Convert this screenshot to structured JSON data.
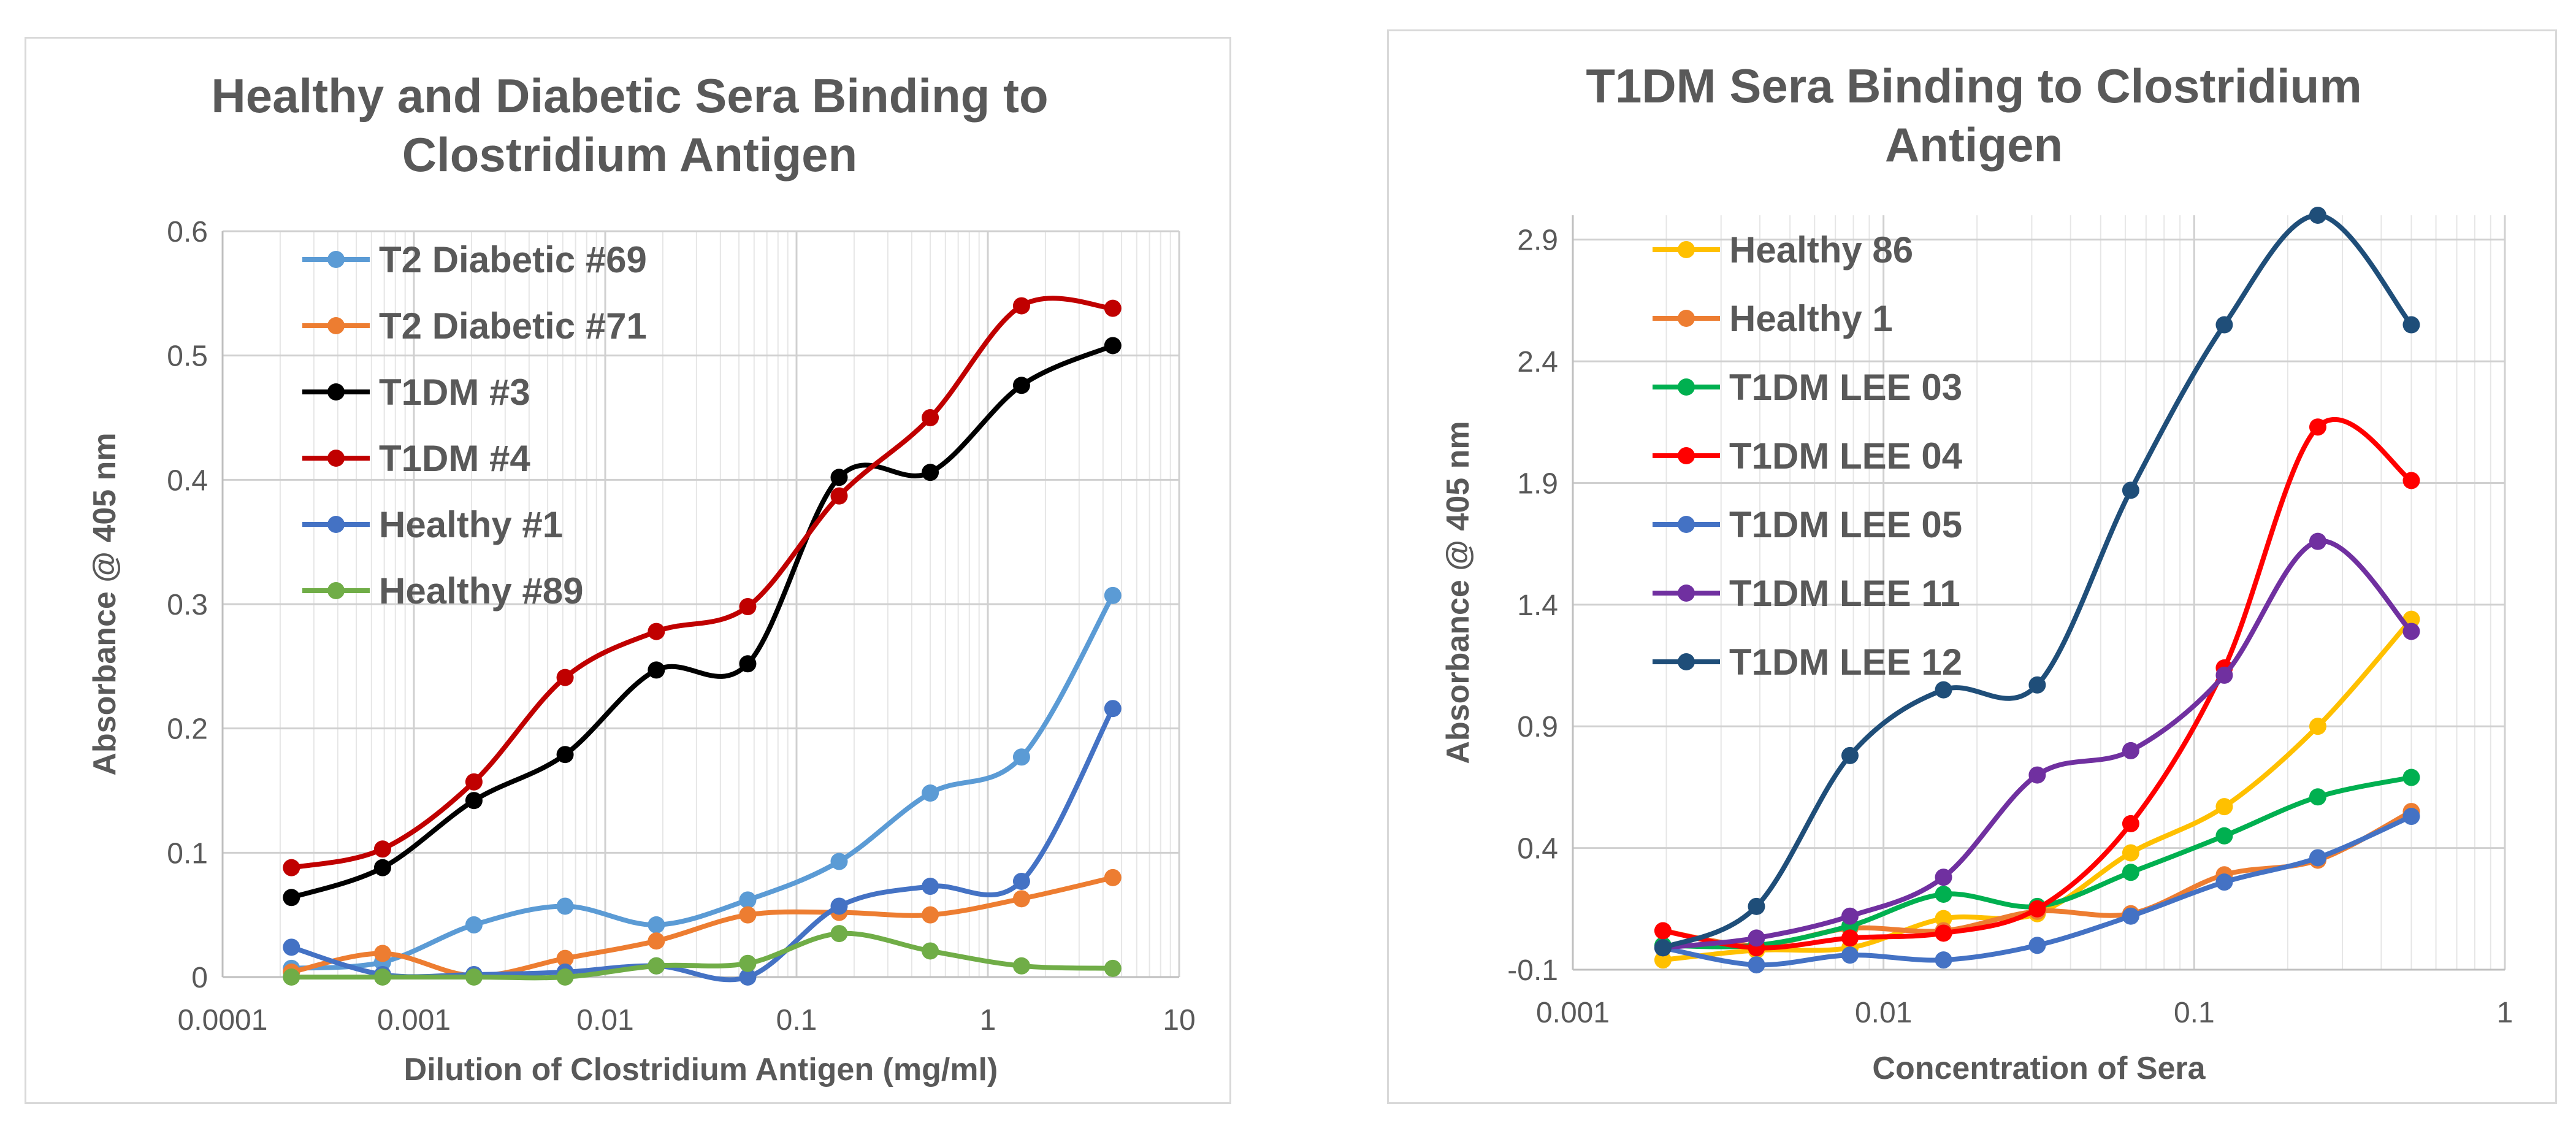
{
  "chart_data": [
    {
      "type": "line",
      "title": [
        "Healthy and Diabetic Sera Binding to",
        "Clostridium Antigen"
      ],
      "xlabel": "Dilution of Clostridium Antigen (mg/ml)",
      "ylabel": "Absorbance @ 405 nm",
      "xscale": "log",
      "xlim": [
        0.0001,
        10
      ],
      "ylim": [
        0,
        0.6
      ],
      "xticks": [
        0.0001,
        0.001,
        0.01,
        0.1,
        1,
        10
      ],
      "xtick_labels": [
        "0.0001",
        "0.001",
        "0.01",
        "0.1",
        "1",
        "10"
      ],
      "yticks": [
        0,
        0.1,
        0.2,
        0.3,
        0.4,
        0.5,
        0.6
      ],
      "ytick_labels": [
        "0",
        "0.1",
        "0.2",
        "0.3",
        "0.4",
        "0.5",
        "0.6"
      ],
      "grid": true,
      "legend": "top-left",
      "x": [
        0.000229,
        0.000686,
        0.00206,
        0.00617,
        0.0185,
        0.0556,
        0.167,
        0.5,
        1.5,
        4.5
      ],
      "series": [
        {
          "name": "T2 Diabetic #69",
          "color": "#5B9BD5",
          "values": [
            0.007,
            0.012,
            0.042,
            0.057,
            0.042,
            0.062,
            0.093,
            0.148,
            0.177,
            0.307
          ]
        },
        {
          "name": "T2 Diabetic #71",
          "color": "#ED7D31",
          "values": [
            0.004,
            0.019,
            0.001,
            0.015,
            0.029,
            0.05,
            0.052,
            0.05,
            0.063,
            0.08
          ]
        },
        {
          "name": "T1DM #3",
          "color": "#000000",
          "values": [
            0.064,
            0.088,
            0.142,
            0.179,
            0.247,
            0.252,
            0.402,
            0.406,
            0.476,
            0.508
          ]
        },
        {
          "name": "T1DM #4",
          "color": "#C00000",
          "values": [
            0.088,
            0.103,
            0.157,
            0.241,
            0.278,
            0.298,
            0.387,
            0.45,
            0.54,
            0.538
          ]
        },
        {
          "name": "Healthy #1",
          "color": "#4472C4",
          "values": [
            0.024,
            0.002,
            0.002,
            0.004,
            0.009,
            0.0,
            0.057,
            0.073,
            0.077,
            0.216
          ]
        },
        {
          "name": "Healthy #89",
          "color": "#70AD47",
          "values": [
            0.0,
            0.0,
            0.0,
            0.0,
            0.009,
            0.011,
            0.035,
            0.021,
            0.009,
            0.007
          ]
        }
      ]
    },
    {
      "type": "line",
      "title": [
        "T1DM Sera Binding to Clostridium",
        "Antigen"
      ],
      "xlabel": "Concentration of Sera",
      "ylabel": "Absorbance  @ 405 nm",
      "xscale": "log",
      "xlim": [
        0.001,
        1
      ],
      "ylim": [
        -0.1,
        3.0
      ],
      "xticks": [
        0.001,
        0.01,
        0.1,
        1
      ],
      "xtick_labels": [
        "0.001",
        "0.01",
        "0.1",
        "1"
      ],
      "yticks": [
        -0.1,
        0.4,
        0.9,
        1.4,
        1.9,
        2.4,
        2.9
      ],
      "ytick_labels": [
        "-0.1",
        "0.4",
        "0.9",
        "1.4",
        "1.9",
        "2.4",
        "2.9"
      ],
      "grid": true,
      "legend": "top-left",
      "x": [
        0.00195,
        0.0039,
        0.0078,
        0.0156,
        0.03125,
        0.0625,
        0.125,
        0.25,
        0.5
      ],
      "series": [
        {
          "name": "Healthy 86",
          "color": "#FFC000",
          "values": [
            -0.06,
            -0.02,
            -0.01,
            0.11,
            0.13,
            0.38,
            0.57,
            0.9,
            1.34
          ]
        },
        {
          "name": "Healthy 1",
          "color": "#ED7D31",
          "values": [
            0.06,
            0.0,
            0.07,
            0.06,
            0.14,
            0.13,
            0.29,
            0.35,
            0.55
          ]
        },
        {
          "name": "T1DM LEE 03",
          "color": "#00B050",
          "values": [
            0.0,
            0.0,
            0.08,
            0.21,
            0.16,
            0.3,
            0.45,
            0.61,
            0.69
          ]
        },
        {
          "name": "T1DM LEE 04",
          "color": "#FF0000",
          "values": [
            0.06,
            -0.01,
            0.03,
            0.05,
            0.15,
            0.5,
            1.14,
            2.13,
            1.91
          ]
        },
        {
          "name": "T1DM LEE 05",
          "color": "#4472C4",
          "values": [
            -0.01,
            -0.08,
            -0.04,
            -0.06,
            0.0,
            0.12,
            0.26,
            0.36,
            0.53
          ]
        },
        {
          "name": "T1DM LEE 11",
          "color": "#7030A0",
          "values": [
            -0.01,
            0.03,
            0.12,
            0.28,
            0.7,
            0.8,
            1.11,
            1.66,
            1.29
          ]
        },
        {
          "name": "T1DM LEE 12",
          "color": "#1F4E79",
          "values": [
            -0.01,
            0.16,
            0.78,
            1.05,
            1.07,
            1.87,
            2.55,
            3.0,
            2.55
          ]
        }
      ]
    }
  ]
}
